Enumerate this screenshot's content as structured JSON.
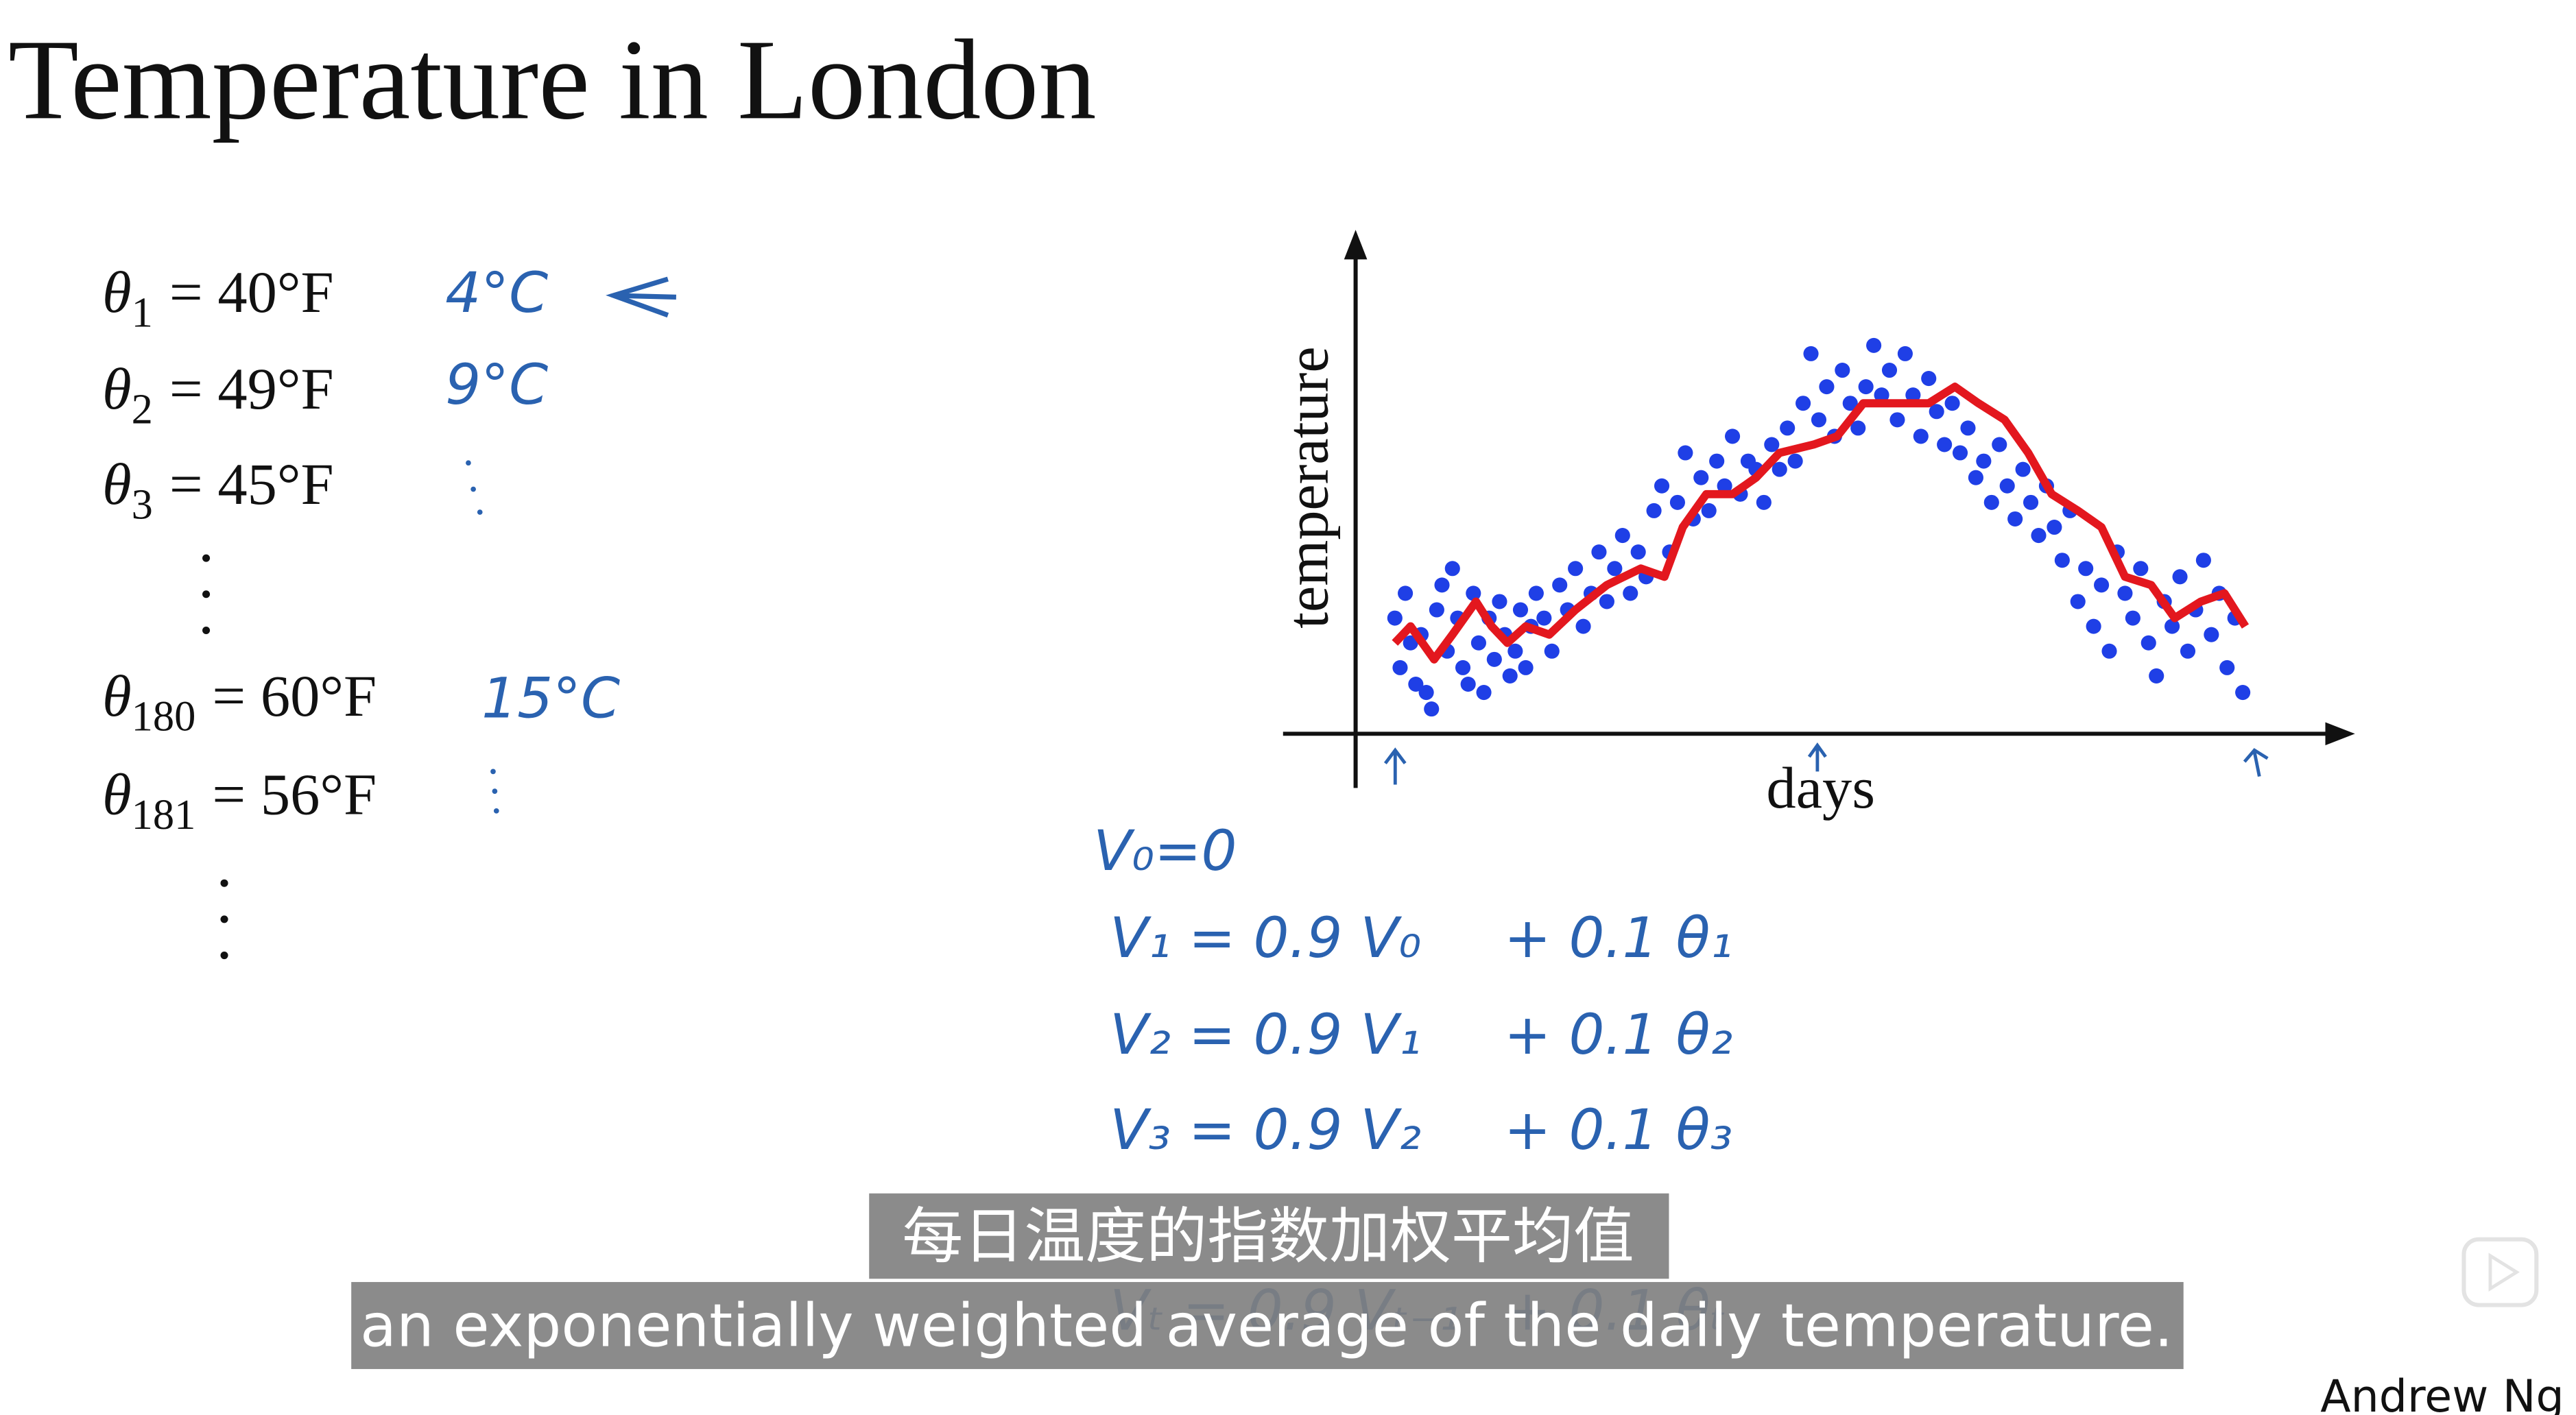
{
  "title": "Temperature in London",
  "equations": [
    {
      "symbol": "θ",
      "subscript": "1",
      "rhs": "= 40°F"
    },
    {
      "symbol": "θ",
      "subscript": "2",
      "rhs": "= 49°F"
    },
    {
      "symbol": "θ",
      "subscript": "3",
      "rhs": "= 45°F"
    },
    {
      "symbol": "θ",
      "subscript": "180",
      "rhs": "= 60°F"
    },
    {
      "symbol": "θ",
      "subscript": "181",
      "rhs": "= 56°F"
    }
  ],
  "annotations": [
    "4°C",
    "9°C",
    "15°C"
  ],
  "handwritten": [
    {
      "left": "V₀=0"
    },
    {
      "left": "V₁ = 0.9 V₀",
      "right": "+ 0.1 θ₁"
    },
    {
      "left": "V₂ = 0.9 V₁",
      "right": "+ 0.1 θ₂"
    },
    {
      "left": "V₃ = 0.9 V₂",
      "right": "+ 0.1 θ₃"
    },
    {
      "left": "Vₜ = 0.9 Vₜ₋₁",
      "right": "+ 0.1 θₜ"
    }
  ],
  "subtitles": {
    "zh": "每日温度的指数加权平均值",
    "en": "an exponentially weighted average of the daily temperature."
  },
  "author": "Andrew Ng",
  "chart_data": {
    "type": "scatter",
    "x_label": "days",
    "y_label": "temperature",
    "xlim": [
      0,
      380
    ],
    "ylim": [
      30,
      90
    ],
    "series": [
      {
        "type": "scatter",
        "color": "#1f3fe6",
        "x": [
          15,
          17,
          19,
          21,
          23,
          25,
          27,
          29,
          31,
          33,
          35,
          37,
          39,
          41,
          43,
          45,
          47,
          49,
          51,
          53,
          55,
          57,
          59,
          61,
          63,
          65,
          67,
          69,
          72,
          75,
          78,
          81,
          84,
          87,
          90,
          93,
          96,
          99,
          102,
          105,
          108,
          111,
          114,
          117,
          120,
          123,
          126,
          129,
          132,
          135,
          138,
          141,
          144,
          147,
          150,
          153,
          156,
          159,
          162,
          165,
          168,
          171,
          174,
          177,
          180,
          183,
          186,
          189,
          192,
          195,
          198,
          201,
          204,
          207,
          210,
          213,
          216,
          219,
          222,
          225,
          228,
          231,
          234,
          237,
          240,
          243,
          246,
          249,
          252,
          255,
          258,
          261,
          264,
          267,
          270,
          273,
          276,
          279,
          282,
          285,
          288,
          291,
          294,
          297,
          300,
          303,
          306,
          309,
          312,
          315,
          318,
          321,
          324,
          327,
          330,
          333,
          336,
          339
        ],
        "values": [
          44,
          38,
          47,
          41,
          36,
          42,
          35,
          33,
          45,
          48,
          40,
          50,
          44,
          38,
          36,
          47,
          41,
          35,
          44,
          39,
          46,
          42,
          37,
          40,
          45,
          38,
          43,
          47,
          44,
          40,
          48,
          45,
          50,
          43,
          47,
          52,
          46,
          50,
          54,
          47,
          52,
          49,
          57,
          60,
          52,
          58,
          64,
          56,
          61,
          57,
          63,
          60,
          66,
          59,
          63,
          62,
          58,
          65,
          62,
          67,
          63,
          70,
          76,
          68,
          72,
          66,
          74,
          70,
          67,
          72,
          77,
          71,
          74,
          68,
          76,
          71,
          66,
          73,
          69,
          65,
          70,
          64,
          67,
          61,
          63,
          58,
          65,
          60,
          56,
          62,
          58,
          54,
          60,
          55,
          51,
          57,
          46,
          50,
          43,
          48,
          40,
          52,
          47,
          44,
          50,
          41,
          37,
          46,
          43,
          49,
          40,
          45,
          51,
          42,
          47,
          38,
          44,
          35
        ]
      },
      {
        "type": "line",
        "color": "#e3171e",
        "x": [
          15,
          21,
          30,
          37,
          46,
          52,
          58,
          65,
          74,
          84,
          96,
          109,
          118,
          125,
          134,
          144,
          153,
          162,
          175,
          184,
          194,
          207,
          219,
          229,
          238,
          248,
          257,
          266,
          276,
          285,
          294,
          304,
          313,
          323,
          332,
          340
        ],
        "values": [
          41,
          43,
          39,
          42,
          46,
          43,
          41,
          43,
          42,
          45,
          48,
          50,
          49,
          55,
          59,
          59,
          61,
          64,
          65,
          66,
          70,
          70,
          70,
          72,
          70,
          68,
          64,
          59,
          57,
          55,
          49,
          48,
          44,
          46,
          47,
          43
        ]
      }
    ]
  }
}
